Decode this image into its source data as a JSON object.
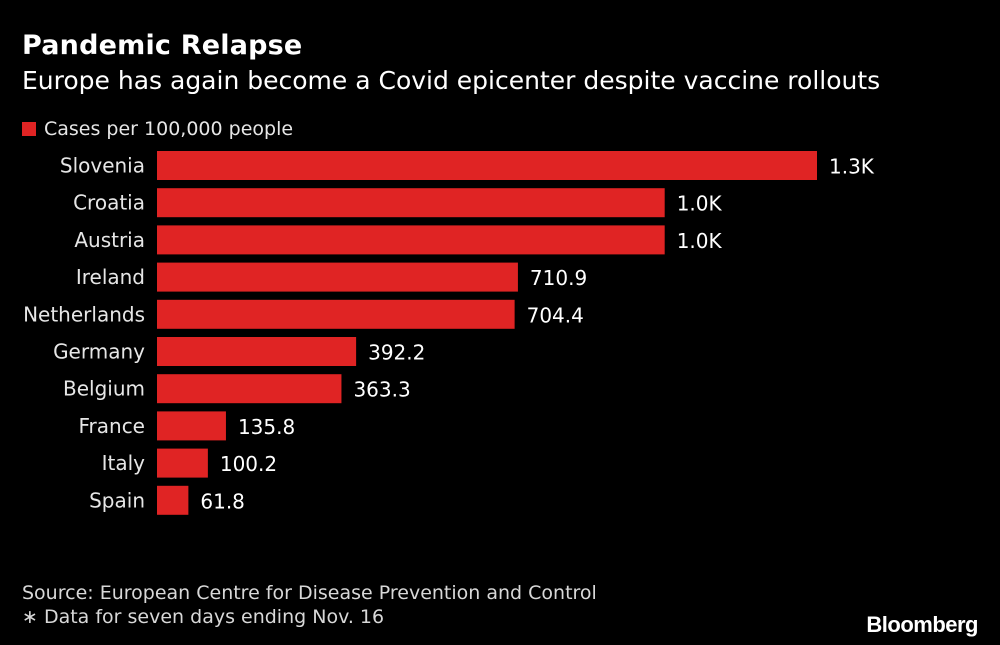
{
  "header": {
    "title": "Pandemic Relapse",
    "subtitle": "Europe has again become a Covid epicenter despite vaccine rollouts"
  },
  "legend": {
    "label": "Cases per 100,000 people",
    "color": "#e02424"
  },
  "chart_data": {
    "type": "bar",
    "orientation": "horizontal",
    "categories": [
      "Slovenia",
      "Croatia",
      "Austria",
      "Ireland",
      "Netherlands",
      "Germany",
      "Belgium",
      "France",
      "Italy",
      "Spain"
    ],
    "series": [
      {
        "name": "Cases per 100,000 people",
        "values": [
          1300,
          1000,
          1000,
          710.9,
          704.4,
          392.2,
          363.3,
          135.8,
          100.2,
          61.8
        ],
        "labels": [
          "1.3K",
          "1.0K",
          "1.0K",
          "710.9",
          "704.4",
          "392.2",
          "363.3",
          "135.8",
          "100.2",
          "61.8"
        ]
      }
    ],
    "xlim": [
      0,
      1300
    ],
    "grid": false,
    "legend_position": "top-left",
    "bar_color": "#e02424"
  },
  "footer": {
    "source": "Source: European Centre for Disease Prevention and Control",
    "note": "∗ Data for seven days ending Nov. 16",
    "brand": "Bloomberg"
  }
}
